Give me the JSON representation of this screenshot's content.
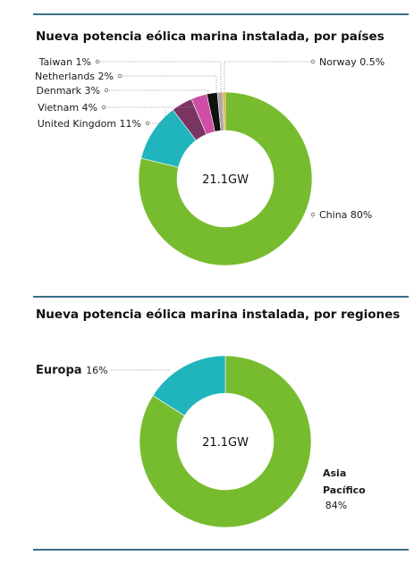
{
  "chart_data": [
    {
      "type": "pie",
      "title": "Nueva potencia eólica marina instalada, por países",
      "center_label": "21.1GW",
      "categories": [
        "China",
        "United Kingdom",
        "Vietnam",
        "Denmark",
        "Netherlands",
        "Taiwan",
        "Norway"
      ],
      "values": [
        80,
        11,
        4,
        3,
        2,
        1,
        0.5
      ],
      "value_labels": [
        "80%",
        "11%",
        "4%",
        "3%",
        "2%",
        "1%",
        "0.5%"
      ],
      "colors": [
        "#77bc2f",
        "#20b5bd",
        "#7a3462",
        "#cf4fa5",
        "#111111",
        "#a8a8a8",
        "#f29a1e"
      ]
    },
    {
      "type": "pie",
      "title": "Nueva potencia eólica marina instalada, por regiones",
      "center_label": "21.1GW",
      "categories": [
        "Europa",
        "Asia Pacífico"
      ],
      "values": [
        16,
        84
      ],
      "value_labels": [
        "16%",
        "84%"
      ],
      "colors": [
        "#20b5bd",
        "#77bc2f"
      ]
    }
  ]
}
